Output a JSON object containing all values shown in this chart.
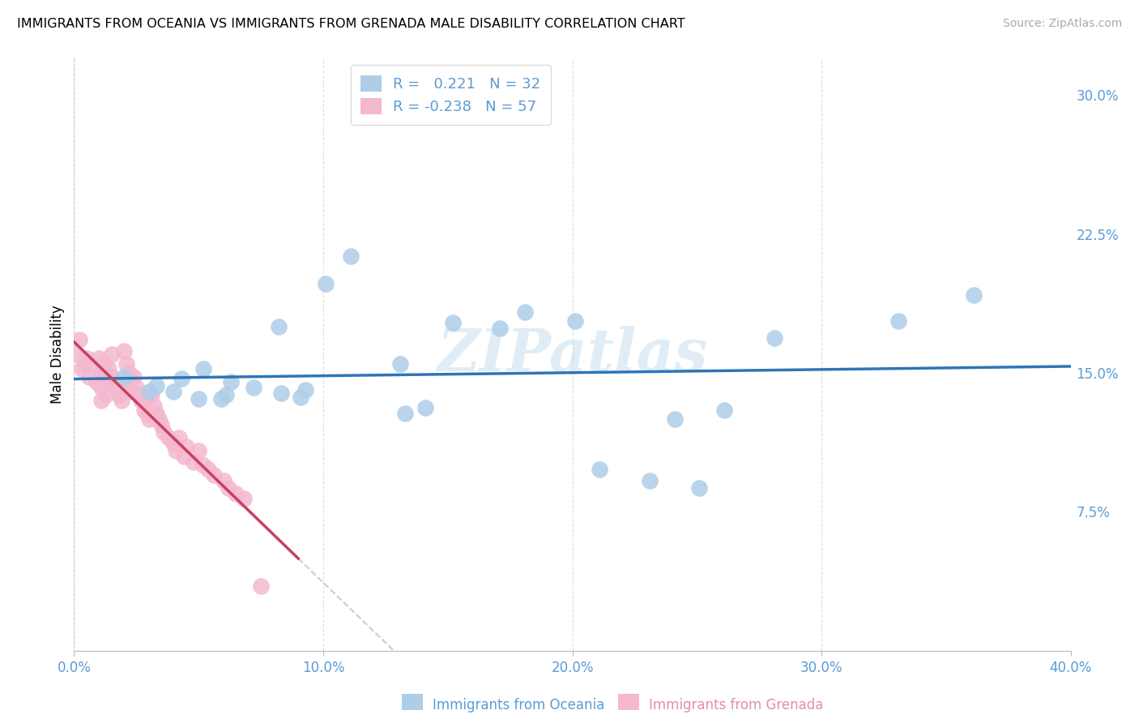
{
  "title": "IMMIGRANTS FROM OCEANIA VS IMMIGRANTS FROM GRENADA MALE DISABILITY CORRELATION CHART",
  "source": "Source: ZipAtlas.com",
  "accent_color": "#5b9bd5",
  "pink_color": "#e48cb4",
  "blue_scatter": "#aecde8",
  "pink_scatter": "#f4b8cf",
  "blue_line": "#2e75b6",
  "pink_line": "#c9405a",
  "dash_color": "#cccccc",
  "xlim": [
    0.0,
    0.4
  ],
  "ylim": [
    0.0,
    0.32
  ],
  "xticks": [
    0.0,
    0.1,
    0.2,
    0.3,
    0.4
  ],
  "xtick_labels": [
    "0.0%",
    "10.0%",
    "20.0%",
    "30.0%",
    "40.0%"
  ],
  "ytick_vals": [
    0.075,
    0.15,
    0.225,
    0.3
  ],
  "ytick_labels": [
    "7.5%",
    "15.0%",
    "22.5%",
    "30.0%"
  ],
  "oceania_R": "0.221",
  "oceania_N": "32",
  "grenada_R": "-0.238",
  "grenada_N": "57",
  "ylabel": "Male Disability",
  "legend_label1": "Immigrants from Oceania",
  "legend_label2": "Immigrants from Grenada",
  "watermark": "ZIPatlas",
  "oceania_x": [
    0.02,
    0.03,
    0.033,
    0.04,
    0.043,
    0.05,
    0.052,
    0.059,
    0.061,
    0.063,
    0.072,
    0.082,
    0.083,
    0.091,
    0.093,
    0.101,
    0.111,
    0.131,
    0.133,
    0.141,
    0.152,
    0.171,
    0.181,
    0.201,
    0.211,
    0.231,
    0.241,
    0.251,
    0.261,
    0.281,
    0.331,
    0.361
  ],
  "oceania_y": [
    0.148,
    0.14,
    0.143,
    0.14,
    0.147,
    0.136,
    0.152,
    0.136,
    0.138,
    0.145,
    0.142,
    0.175,
    0.139,
    0.137,
    0.141,
    0.198,
    0.213,
    0.155,
    0.128,
    0.131,
    0.177,
    0.174,
    0.183,
    0.178,
    0.098,
    0.092,
    0.125,
    0.088,
    0.13,
    0.169,
    0.178,
    0.192
  ],
  "grenada_x": [
    0.001,
    0.002,
    0.003,
    0.004,
    0.005,
    0.006,
    0.009,
    0.01,
    0.01,
    0.011,
    0.011,
    0.011,
    0.012,
    0.012,
    0.013,
    0.013,
    0.014,
    0.015,
    0.015,
    0.016,
    0.017,
    0.018,
    0.019,
    0.02,
    0.021,
    0.022,
    0.022,
    0.023,
    0.024,
    0.025,
    0.026,
    0.027,
    0.028,
    0.029,
    0.03,
    0.031,
    0.032,
    0.033,
    0.034,
    0.035,
    0.036,
    0.038,
    0.04,
    0.041,
    0.042,
    0.044,
    0.045,
    0.048,
    0.05,
    0.052,
    0.054,
    0.056,
    0.06,
    0.062,
    0.065,
    0.068,
    0.075
  ],
  "grenada_y": [
    0.16,
    0.168,
    0.152,
    0.155,
    0.158,
    0.148,
    0.145,
    0.153,
    0.158,
    0.15,
    0.142,
    0.135,
    0.155,
    0.148,
    0.145,
    0.138,
    0.152,
    0.16,
    0.148,
    0.145,
    0.142,
    0.138,
    0.135,
    0.162,
    0.155,
    0.15,
    0.145,
    0.14,
    0.148,
    0.142,
    0.138,
    0.135,
    0.13,
    0.128,
    0.125,
    0.138,
    0.132,
    0.128,
    0.125,
    0.122,
    0.118,
    0.115,
    0.112,
    0.108,
    0.115,
    0.105,
    0.11,
    0.102,
    0.108,
    0.1,
    0.098,
    0.095,
    0.092,
    0.088,
    0.085,
    0.082,
    0.035
  ]
}
